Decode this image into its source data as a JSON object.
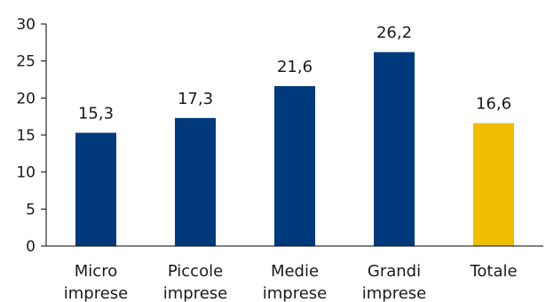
{
  "chart_data": {
    "type": "bar",
    "categories": [
      [
        "Micro",
        "imprese"
      ],
      [
        "Piccole",
        "imprese"
      ],
      [
        "Medie",
        "imprese"
      ],
      [
        "Grandi",
        "imprese"
      ],
      [
        "Totale"
      ]
    ],
    "values": [
      15.3,
      17.3,
      21.6,
      26.2,
      16.6
    ],
    "data_labels": [
      "15,3",
      "17,3",
      "21,6",
      "26,2",
      "16,6"
    ],
    "bar_colors": [
      "#003a7d",
      "#003a7d",
      "#003a7d",
      "#003a7d",
      "#f0be00"
    ],
    "title": "",
    "xlabel": "",
    "ylabel": "",
    "ylim": [
      0,
      30
    ],
    "yticks": [
      0,
      5,
      10,
      15,
      20,
      25,
      30
    ],
    "grid": false,
    "legend": "none"
  }
}
